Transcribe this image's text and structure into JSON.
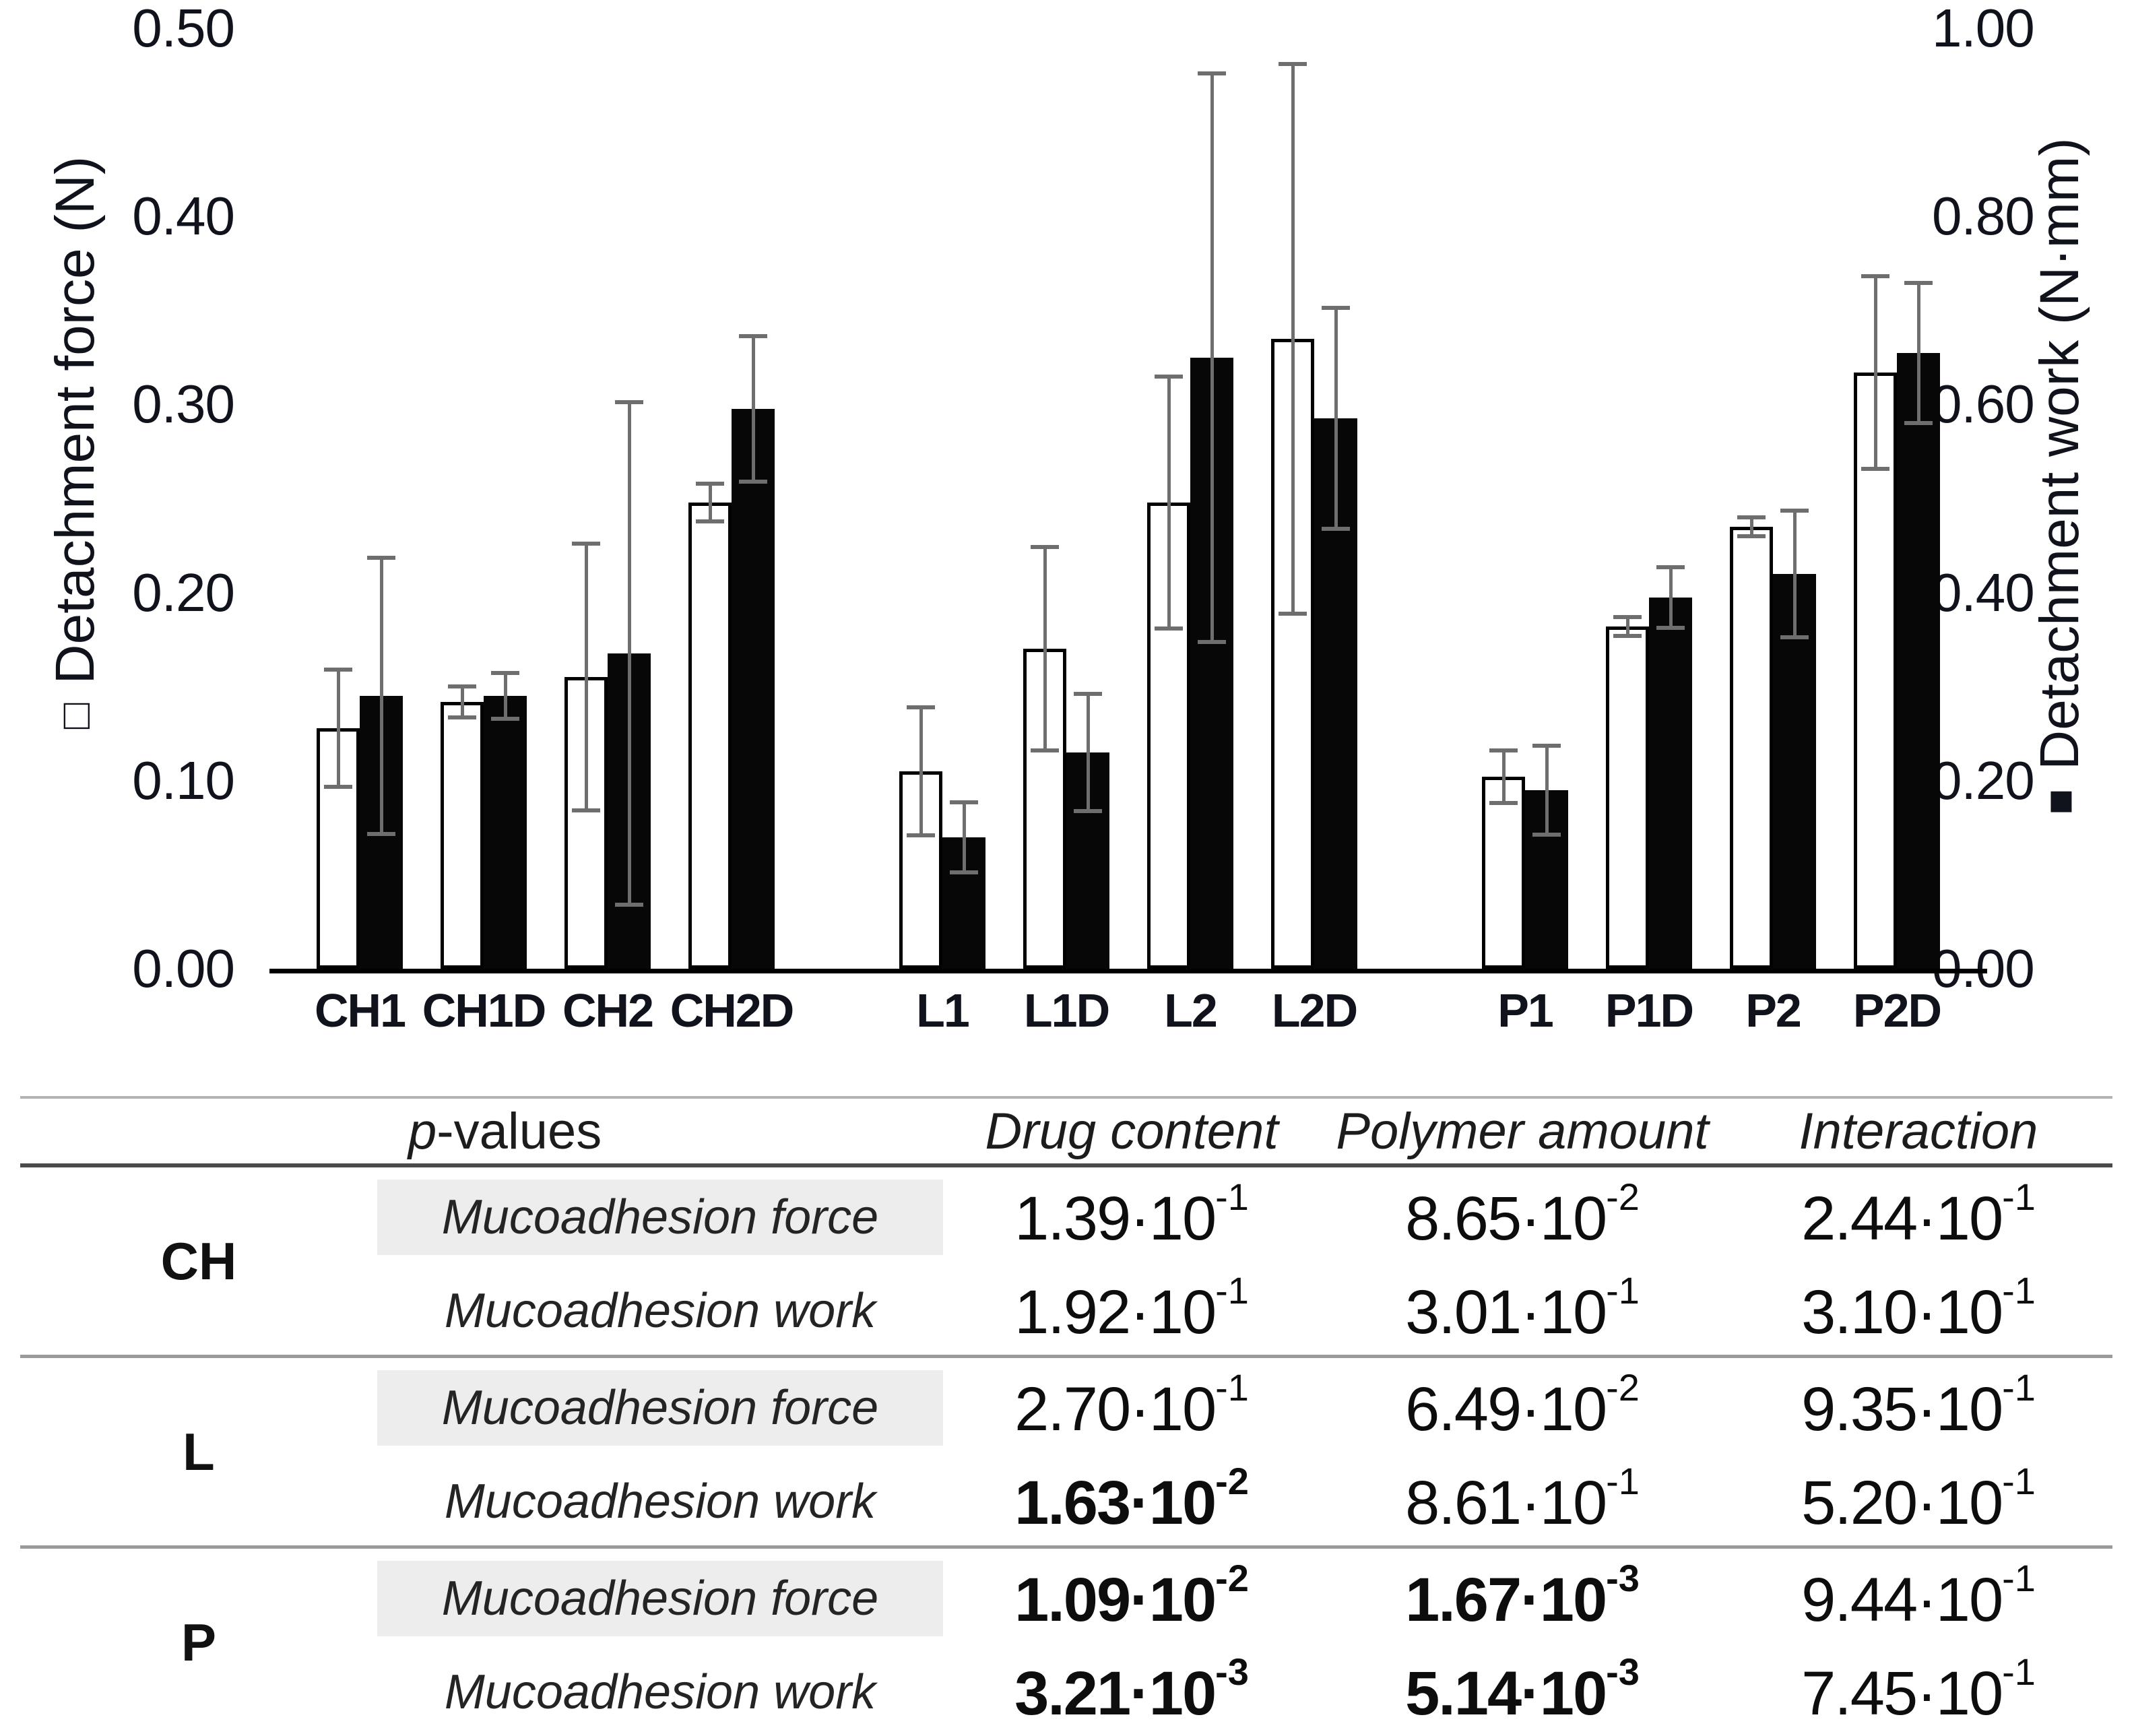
{
  "chart_data": {
    "type": "bar",
    "title": "",
    "grid": false,
    "groups": [
      "CH",
      "L",
      "P"
    ],
    "categories": [
      "CH1",
      "CH1D",
      "CH2",
      "CH2D",
      "L1",
      "L1D",
      "L2",
      "L2D",
      "P1",
      "P1D",
      "P2",
      "P2D"
    ],
    "series": [
      {
        "name": "Detachment force",
        "axis": "left",
        "unit": "N",
        "style": "open-bar",
        "values": [
          0.128,
          0.142,
          0.155,
          0.248,
          0.105,
          0.17,
          0.248,
          0.335,
          0.102,
          0.182,
          0.235,
          0.317
        ],
        "errors": [
          0.03,
          0.007,
          0.07,
          0.009,
          0.033,
          0.053,
          0.066,
          0.145,
          0.013,
          0.004,
          0.004,
          0.05
        ]
      },
      {
        "name": "Detachment work",
        "axis": "right",
        "unit": "N·mm",
        "style": "filled-bar",
        "values": [
          0.29,
          0.29,
          0.335,
          0.595,
          0.14,
          0.23,
          0.65,
          0.585,
          0.19,
          0.395,
          0.42,
          0.655
        ],
        "errors": [
          0.145,
          0.022,
          0.265,
          0.075,
          0.035,
          0.06,
          0.3,
          0.115,
          0.045,
          0.03,
          0.065,
          0.072
        ]
      }
    ],
    "left_axis": {
      "label": "Detachment force (N)",
      "marker": "□",
      "ticks": [
        "0.00",
        "0.10",
        "0.20",
        "0.30",
        "0.40",
        "0.50"
      ],
      "max": 0.5
    },
    "right_axis": {
      "label": "Detachment work (N·mm)",
      "marker": "■",
      "ticks": [
        "0.00",
        "0.20",
        "0.40",
        "0.60",
        "0.80",
        "1.00"
      ],
      "max": 1.0
    }
  },
  "table": {
    "header": {
      "pv_prefix": "p",
      "pv_suffix": "-values",
      "col2": "Drug content",
      "col3": "Polymer amount",
      "col4": "Interaction"
    },
    "row_groups": [
      {
        "group": "CH",
        "rows": [
          {
            "metric": "Mucoadhesion force",
            "shaded": true,
            "values": [
              {
                "m": "1.39",
                "e": "-1",
                "bold": false
              },
              {
                "m": "8.65",
                "e": "-2",
                "bold": false
              },
              {
                "m": "2.44",
                "e": "-1",
                "bold": false
              }
            ]
          },
          {
            "metric": "Mucoadhesion work",
            "shaded": false,
            "values": [
              {
                "m": "1.92",
                "e": "-1",
                "bold": false
              },
              {
                "m": "3.01",
                "e": "-1",
                "bold": false
              },
              {
                "m": "3.10",
                "e": "-1",
                "bold": false
              }
            ]
          }
        ]
      },
      {
        "group": "L",
        "rows": [
          {
            "metric": "Mucoadhesion force",
            "shaded": true,
            "values": [
              {
                "m": "2.70",
                "e": "-1",
                "bold": false
              },
              {
                "m": "6.49",
                "e": "-2",
                "bold": false
              },
              {
                "m": "9.35",
                "e": "-1",
                "bold": false
              }
            ]
          },
          {
            "metric": "Mucoadhesion work",
            "shaded": false,
            "values": [
              {
                "m": "1.63",
                "e": "-2",
                "bold": true
              },
              {
                "m": "8.61",
                "e": "-1",
                "bold": false
              },
              {
                "m": "5.20",
                "e": "-1",
                "bold": false
              }
            ]
          }
        ]
      },
      {
        "group": "P",
        "rows": [
          {
            "metric": "Mucoadhesion force",
            "shaded": true,
            "values": [
              {
                "m": "1.09",
                "e": "-2",
                "bold": true
              },
              {
                "m": "1.67",
                "e": "-3",
                "bold": true
              },
              {
                "m": "9.44",
                "e": "-1",
                "bold": false
              }
            ]
          },
          {
            "metric": "Mucoadhesion work",
            "shaded": false,
            "values": [
              {
                "m": "3.21",
                "e": "-3",
                "bold": true
              },
              {
                "m": "5.14",
                "e": "-3",
                "bold": true
              },
              {
                "m": "7.45",
                "e": "-1",
                "bold": false
              }
            ]
          }
        ]
      }
    ]
  }
}
